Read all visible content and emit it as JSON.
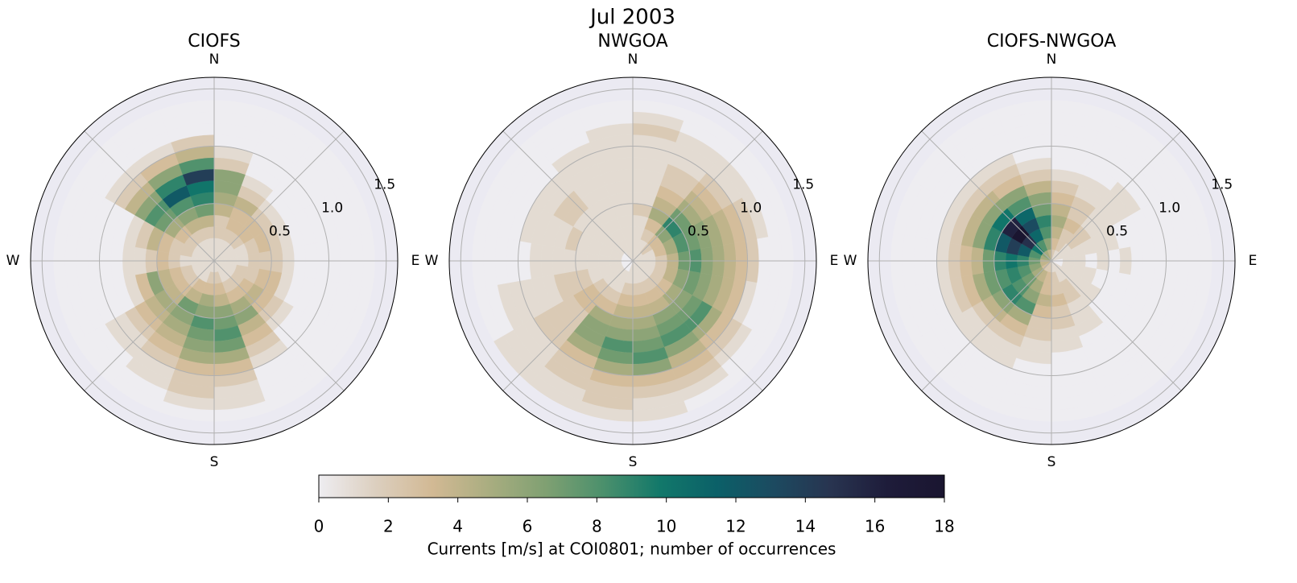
{
  "title": "Jul 2003",
  "colorbar": {
    "label": "Currents [m/s] at COI0801; number of occurrences",
    "lim": [
      0,
      18
    ],
    "ticks": [
      0,
      2,
      4,
      6,
      8,
      10,
      12,
      14,
      16,
      18
    ],
    "colormap": [
      "#eeedf1",
      "#dccfbf",
      "#d2b994",
      "#a9ad80",
      "#7fa072",
      "#4b906c",
      "#12786a",
      "#0b6068",
      "#1c4a60",
      "#283450",
      "#1e1c3a",
      "#1a1530"
    ]
  },
  "chart_data": [
    {
      "type": "polar_histogram",
      "title": "CIOFS",
      "theta_ticks": [
        0,
        90,
        180,
        270
      ],
      "theta_labels": [
        "N",
        "E",
        "S",
        "W"
      ],
      "theta_grid": [
        0,
        45,
        90,
        135,
        180,
        225,
        270,
        315
      ],
      "rlim": [
        0,
        1.6
      ],
      "rticks": [
        0.5,
        {
          "value": 1,
          "label": "1.0"
        },
        1.5
      ],
      "direction_bins": [
        0,
        20,
        40,
        60,
        80,
        100,
        120,
        140,
        160,
        180,
        200,
        220,
        240,
        260,
        280,
        300,
        320,
        340,
        360
      ],
      "speed_bins": [
        0,
        0.1,
        0.2,
        0.3,
        0.4,
        0.5,
        0.6,
        0.7,
        0.8,
        0.9,
        1.0,
        1.1,
        1.2,
        1.3,
        1.4
      ],
      "counts": [
        [
          1,
          1,
          2,
          2,
          4,
          5,
          6,
          6,
          2,
          1,
          0,
          0,
          0,
          0
        ],
        [
          1,
          1,
          2,
          3,
          3,
          4,
          2,
          1,
          0,
          0,
          0,
          0,
          0,
          0
        ],
        [
          1,
          1,
          2,
          3,
          3,
          2,
          1,
          0,
          0,
          0,
          0,
          0,
          0,
          0
        ],
        [
          1,
          1,
          1,
          2,
          3,
          2,
          1,
          0,
          0,
          0,
          0,
          0,
          0,
          0
        ],
        [
          1,
          1,
          1,
          2,
          2,
          2,
          1,
          0,
          0,
          0,
          0,
          0,
          0,
          0
        ],
        [
          1,
          1,
          2,
          2,
          3,
          3,
          1,
          0,
          0,
          0,
          0,
          0,
          0,
          0
        ],
        [
          1,
          1,
          2,
          3,
          4,
          3,
          2,
          1,
          0,
          0,
          0,
          0,
          0,
          0
        ],
        [
          1,
          1,
          2,
          3,
          5,
          6,
          4,
          3,
          2,
          1,
          0,
          0,
          0,
          0
        ],
        [
          1,
          2,
          3,
          4,
          6,
          7,
          8,
          7,
          5,
          3,
          2,
          1,
          1,
          0
        ],
        [
          1,
          2,
          3,
          5,
          6,
          8,
          7,
          6,
          5,
          3,
          2,
          2,
          1,
          0
        ],
        [
          1,
          1,
          3,
          4,
          7,
          6,
          5,
          4,
          3,
          2,
          1,
          1,
          0,
          0
        ],
        [
          1,
          1,
          2,
          3,
          4,
          5,
          4,
          3,
          2,
          1,
          1,
          0,
          0,
          0
        ],
        [
          1,
          1,
          2,
          3,
          4,
          6,
          3,
          1,
          0,
          0,
          0,
          0,
          0,
          0
        ],
        [
          1,
          1,
          1,
          2,
          3,
          2,
          1,
          1,
          0,
          0,
          0,
          0,
          0,
          0
        ],
        [
          1,
          1,
          2,
          2,
          3,
          4,
          2,
          1,
          0,
          0,
          0,
          0,
          0,
          0
        ],
        [
          1,
          1,
          2,
          3,
          5,
          7,
          8,
          6,
          4,
          2,
          1,
          0,
          0,
          0
        ],
        [
          1,
          1,
          2,
          4,
          6,
          8,
          12,
          9,
          6,
          3,
          1,
          0,
          0,
          0
        ],
        [
          1,
          1,
          2,
          4,
          7,
          9,
          10,
          14,
          8,
          4,
          2,
          0,
          0,
          0
        ]
      ]
    },
    {
      "type": "polar_histogram",
      "title": "NWGOA",
      "theta_ticks": [
        0,
        90,
        180,
        270
      ],
      "theta_labels": [
        "N",
        "E",
        "S",
        "W"
      ],
      "theta_grid": [
        0,
        45,
        90,
        135,
        180,
        225,
        270,
        315
      ],
      "rlim": [
        0,
        1.6
      ],
      "rticks": [
        0.5,
        {
          "value": 1,
          "label": "1.0"
        },
        1.5
      ],
      "direction_bins": [
        0,
        20,
        40,
        60,
        80,
        100,
        120,
        140,
        160,
        180,
        200,
        220,
        240,
        260,
        280,
        300,
        320,
        340,
        360
      ],
      "speed_bins": [
        0,
        0.1,
        0.2,
        0.3,
        0.4,
        0.5,
        0.6,
        0.7,
        0.8,
        0.9,
        1.0,
        1.1,
        1.2,
        1.3,
        1.4
      ],
      "counts": [
        [
          1,
          1,
          1,
          1,
          2,
          1,
          1,
          1,
          1,
          1,
          1,
          2,
          1,
          0
        ],
        [
          1,
          1,
          2,
          3,
          5,
          4,
          3,
          2,
          2,
          1,
          1,
          1,
          0,
          0
        ],
        [
          1,
          2,
          3,
          6,
          9,
          7,
          5,
          4,
          3,
          2,
          1,
          1,
          0,
          0
        ],
        [
          1,
          1,
          3,
          5,
          8,
          7,
          6,
          5,
          4,
          3,
          2,
          1,
          0,
          0
        ],
        [
          1,
          1,
          2,
          4,
          7,
          8,
          6,
          5,
          4,
          3,
          2,
          0,
          0,
          0
        ],
        [
          1,
          1,
          2,
          4,
          6,
          7,
          6,
          5,
          4,
          3,
          1,
          0,
          0,
          0
        ],
        [
          1,
          1,
          2,
          3,
          5,
          6,
          7,
          8,
          5,
          3,
          2,
          1,
          0,
          0
        ],
        [
          1,
          1,
          2,
          3,
          4,
          6,
          7,
          8,
          6,
          4,
          3,
          2,
          1,
          0
        ],
        [
          1,
          1,
          2,
          3,
          4,
          5,
          6,
          7,
          8,
          6,
          3,
          2,
          1,
          1
        ],
        [
          1,
          1,
          2,
          3,
          4,
          5,
          6,
          8,
          7,
          5,
          3,
          2,
          2,
          1
        ],
        [
          0,
          1,
          1,
          2,
          3,
          5,
          6,
          6,
          5,
          3,
          2,
          2,
          1,
          1
        ],
        [
          0,
          1,
          1,
          2,
          3,
          3,
          2,
          2,
          2,
          2,
          1,
          1,
          1,
          1
        ],
        [
          0,
          1,
          1,
          1,
          2,
          2,
          2,
          1,
          1,
          1,
          1,
          1,
          0,
          0
        ],
        [
          0,
          1,
          1,
          1,
          1,
          1,
          1,
          1,
          1,
          0,
          0,
          0,
          0,
          0
        ],
        [
          0,
          1,
          1,
          1,
          1,
          2,
          1,
          1,
          1,
          1,
          0,
          0,
          0,
          0
        ],
        [
          0,
          1,
          1,
          1,
          1,
          1,
          2,
          2,
          1,
          1,
          0,
          0,
          0,
          0
        ],
        [
          1,
          1,
          1,
          1,
          1,
          1,
          1,
          1,
          1,
          1,
          1,
          0,
          0,
          0
        ],
        [
          1,
          1,
          1,
          1,
          1,
          1,
          1,
          1,
          1,
          1,
          1,
          1,
          0,
          0
        ]
      ]
    },
    {
      "type": "polar_histogram",
      "title": "CIOFS-NWGOA",
      "theta_ticks": [
        0,
        90,
        180,
        270
      ],
      "theta_labels": [
        "N",
        "E",
        "S",
        "W"
      ],
      "theta_grid": [
        0,
        45,
        90,
        135,
        180,
        225,
        270,
        315
      ],
      "rlim": [
        0,
        1.6
      ],
      "rticks": [
        0.5,
        {
          "value": 1,
          "label": "1.0"
        },
        1.5
      ],
      "direction_bins": [
        0,
        20,
        40,
        60,
        80,
        100,
        120,
        140,
        160,
        180,
        200,
        220,
        240,
        260,
        280,
        300,
        320,
        340,
        360
      ],
      "speed_bins": [
        0,
        0.1,
        0.2,
        0.3,
        0.4,
        0.5,
        0.6,
        0.7,
        0.8,
        0.9,
        1.0,
        1.1,
        1.2,
        1.3,
        1.4
      ],
      "counts": [
        [
          2,
          3,
          4,
          5,
          4,
          3,
          2,
          1,
          0,
          0,
          0,
          0,
          0,
          0
        ],
        [
          1,
          2,
          2,
          3,
          2,
          2,
          1,
          1,
          0,
          0,
          0,
          0,
          0,
          0
        ],
        [
          1,
          1,
          2,
          2,
          1,
          1,
          1,
          1,
          1,
          0,
          0,
          0,
          0,
          0
        ],
        [
          1,
          1,
          1,
          1,
          1,
          1,
          0,
          0,
          0,
          0,
          0,
          0,
          0,
          0
        ],
        [
          0,
          1,
          1,
          0,
          1,
          0,
          1,
          0,
          0,
          0,
          0,
          0,
          0,
          0
        ],
        [
          0,
          1,
          1,
          1,
          0,
          0,
          0,
          0,
          0,
          0,
          0,
          0,
          0,
          0
        ],
        [
          1,
          1,
          1,
          1,
          1,
          0,
          0,
          0,
          0,
          0,
          0,
          0,
          0,
          0
        ],
        [
          1,
          1,
          2,
          2,
          1,
          1,
          1,
          0,
          0,
          0,
          0,
          0,
          0,
          0
        ],
        [
          1,
          2,
          2,
          3,
          2,
          2,
          1,
          1,
          0,
          0,
          0,
          0,
          0,
          0
        ],
        [
          2,
          3,
          3,
          4,
          3,
          2,
          2,
          1,
          1,
          0,
          0,
          0,
          0,
          0
        ],
        [
          2,
          4,
          5,
          6,
          8,
          5,
          3,
          2,
          1,
          1,
          0,
          0,
          0,
          0
        ],
        [
          3,
          5,
          7,
          8,
          9,
          6,
          4,
          2,
          1,
          1,
          0,
          0,
          0,
          0
        ],
        [
          4,
          6,
          8,
          9,
          8,
          7,
          5,
          3,
          2,
          1,
          0,
          0,
          0,
          0
        ],
        [
          4,
          7,
          9,
          10,
          9,
          7,
          4,
          3,
          2,
          1,
          0,
          0,
          0,
          0
        ],
        [
          5,
          8,
          12,
          14,
          12,
          9,
          6,
          4,
          2,
          1,
          0,
          0,
          0,
          0
        ],
        [
          6,
          10,
          15,
          18,
          16,
          10,
          6,
          4,
          2,
          1,
          0,
          0,
          0,
          0
        ],
        [
          5,
          8,
          11,
          13,
          11,
          8,
          6,
          3,
          2,
          1,
          0,
          0,
          0,
          0
        ],
        [
          4,
          6,
          8,
          9,
          7,
          6,
          4,
          2,
          1,
          0,
          0,
          0,
          0,
          0
        ]
      ]
    }
  ]
}
